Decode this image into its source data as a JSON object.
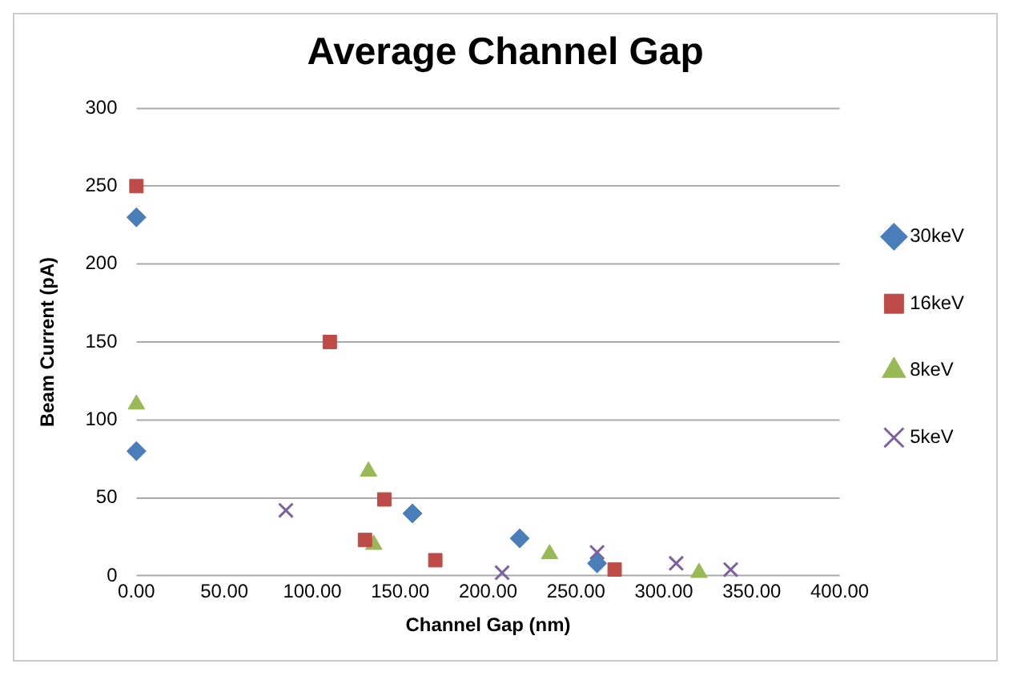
{
  "chart_data": {
    "type": "scatter",
    "title": "Average Channel Gap",
    "xlabel": "Channel Gap (nm)",
    "ylabel": "Beam Current (pA)",
    "xlim": [
      0,
      400
    ],
    "xticks": [
      {
        "value": 0,
        "label": "0.00"
      },
      {
        "value": 50,
        "label": "50.00"
      },
      {
        "value": 100,
        "label": "100.00"
      },
      {
        "value": 150,
        "label": "150.00"
      },
      {
        "value": 200,
        "label": "200.00"
      },
      {
        "value": 250,
        "label": "250.00"
      },
      {
        "value": 300,
        "label": "300.00"
      },
      {
        "value": 350,
        "label": "350.00"
      },
      {
        "value": 400,
        "label": "400.00"
      }
    ],
    "ylim": [
      0,
      300
    ],
    "yticks": [
      0,
      50,
      100,
      150,
      200,
      250,
      300
    ],
    "grid": "y",
    "legend": "right",
    "series": [
      {
        "name": "30keV",
        "color": "#4a7ebb",
        "marker": "diamond",
        "x": [
          0,
          0,
          157,
          218,
          262
        ],
        "values": [
          230,
          80,
          40,
          24,
          8
        ]
      },
      {
        "name": "16keV",
        "color": "#be4b48",
        "marker": "square",
        "x": [
          0,
          110,
          130,
          141,
          170,
          272
        ],
        "values": [
          250,
          150,
          23,
          49,
          10,
          4
        ]
      },
      {
        "name": "8keV",
        "color": "#98b954",
        "marker": "triangle",
        "x": [
          0,
          132,
          135,
          235,
          272,
          320
        ],
        "values": [
          110,
          67,
          20,
          14,
          null,
          2
        ]
      },
      {
        "name": "5keV",
        "color": "#7d60a0",
        "marker": "cross",
        "x": [
          85,
          208,
          262,
          307,
          338
        ],
        "values": [
          42,
          2,
          15,
          8,
          4
        ]
      }
    ]
  }
}
